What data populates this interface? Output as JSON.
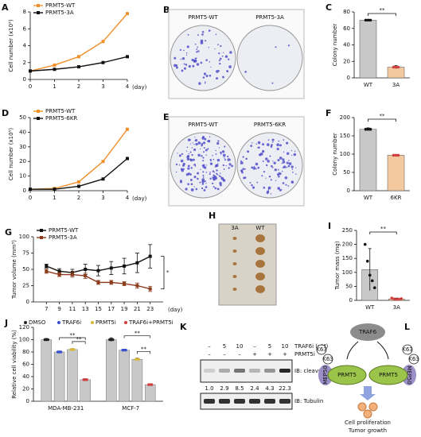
{
  "chart_data": [
    {
      "panel": "A",
      "type": "line",
      "ylabel": "Cell number (x10⁵)",
      "xlabel": "(day)",
      "x": [
        0,
        1,
        2,
        3,
        4
      ],
      "xlim": [
        0,
        4
      ],
      "xticks": [
        0,
        1,
        2,
        3,
        4
      ],
      "ylim": [
        0,
        8
      ],
      "yticks": [
        0,
        2,
        4,
        6,
        8
      ],
      "series": [
        {
          "name": "PRMT5-WT",
          "color": "#f0902a",
          "values": [
            1,
            1.7,
            2.7,
            4.5,
            7.8
          ]
        },
        {
          "name": "PRMT5-3A",
          "color": "#111111",
          "values": [
            1,
            1.2,
            1.5,
            2,
            2.7
          ]
        }
      ]
    },
    {
      "panel": "C",
      "type": "bar",
      "ylabel": "Colony number",
      "categories": [
        "WT",
        "3A"
      ],
      "values": [
        70,
        13
      ],
      "errors": [
        1,
        2
      ],
      "colors": [
        "#c8c8c8",
        "#f5c9a0"
      ],
      "ylim": [
        0,
        80
      ],
      "yticks": [
        0,
        20,
        40,
        60,
        80
      ],
      "annotations": [
        "**"
      ]
    },
    {
      "panel": "D",
      "type": "line",
      "ylabel": "Cell number (x10⁵)",
      "xlabel": "(day)",
      "x": [
        0,
        1,
        2,
        3,
        4
      ],
      "xlim": [
        0,
        4
      ],
      "xticks": [
        0,
        1,
        2,
        3,
        4
      ],
      "ylim": [
        0,
        50
      ],
      "yticks": [
        0,
        10,
        20,
        30,
        40,
        50
      ],
      "series": [
        {
          "name": "PRMT5-WT",
          "color": "#f0902a",
          "values": [
            1,
            1.5,
            6,
            20,
            42
          ]
        },
        {
          "name": "PRMT5-6KR",
          "color": "#111111",
          "values": [
            1,
            1,
            3,
            8,
            22
          ]
        }
      ]
    },
    {
      "panel": "F",
      "type": "bar",
      "ylabel": "Colony number",
      "categories": [
        "WT",
        "6KR"
      ],
      "values": [
        168,
        97
      ],
      "errors": [
        4,
        2
      ],
      "colors": [
        "#c8c8c8",
        "#f5c9a0"
      ],
      "ylim": [
        0,
        200
      ],
      "yticks": [
        0,
        50,
        100,
        150,
        200
      ],
      "annotations": [
        "**"
      ]
    },
    {
      "panel": "G",
      "type": "line",
      "ylabel": "Tumor volume (mm³)",
      "xlabel": "(day)",
      "x": [
        7,
        9,
        11,
        13,
        15,
        17,
        19,
        21,
        23
      ],
      "xlim": [
        5,
        25
      ],
      "xticks": [
        7,
        9,
        11,
        13,
        15,
        17,
        19,
        21,
        23
      ],
      "ylim": [
        0,
        100
      ],
      "yticks": [
        0,
        25,
        50,
        75,
        100
      ],
      "series": [
        {
          "name": "PRMT5-WT",
          "color": "#111111",
          "values": [
            55,
            47,
            45,
            50,
            48,
            52,
            55,
            60,
            70
          ],
          "errors": [
            3,
            4,
            5,
            8,
            8,
            10,
            12,
            15,
            18
          ]
        },
        {
          "name": "PRMT5-3A",
          "color": "#8b3a1a",
          "values": [
            47,
            42,
            42,
            40,
            30,
            30,
            28,
            25,
            20
          ],
          "errors": [
            3,
            3,
            4,
            4,
            3,
            3,
            3,
            4,
            4
          ]
        }
      ],
      "annotations": [
        "*"
      ]
    },
    {
      "panel": "I",
      "type": "bar",
      "ylabel": "Tumor mass (mg)",
      "categories": [
        "WT",
        "3A"
      ],
      "values": [
        110,
        5
      ],
      "errors": [
        75,
        3
      ],
      "colors": [
        "#c8c8c8",
        "#f5c9a0"
      ],
      "points": [
        [
          200,
          140,
          90,
          70,
          45
        ],
        [
          8,
          5,
          3,
          4,
          6
        ]
      ],
      "ylim": [
        0,
        250
      ],
      "yticks": [
        0,
        50,
        100,
        150,
        200,
        250
      ],
      "annotations": [
        "**"
      ]
    },
    {
      "panel": "J",
      "type": "bar",
      "ylabel": "Relative cell viability (%)",
      "categories": [
        "MDA-MB-231",
        "MCF-7"
      ],
      "series": [
        {
          "name": "DMSO",
          "color": "#222222",
          "values": [
            100,
            100
          ],
          "errors": [
            2,
            3
          ]
        },
        {
          "name": "TRAF6i",
          "color": "#3a4fd0",
          "values": [
            80,
            83
          ],
          "errors": [
            1.5,
            1.5
          ]
        },
        {
          "name": "PRMT5i",
          "color": "#d6b83a",
          "values": [
            84,
            68
          ],
          "errors": [
            1.5,
            2
          ]
        },
        {
          "name": "TRAF6i+PRMT5i",
          "color": "#d04040",
          "values": [
            35,
            27
          ],
          "errors": [
            1.5,
            1.5
          ]
        }
      ],
      "ylim": [
        0,
        120
      ],
      "yticks": [
        0,
        20,
        40,
        60,
        80,
        100,
        120
      ],
      "annotations": [
        "**",
        "**",
        "**",
        "**"
      ]
    }
  ],
  "colony_images": [
    {
      "panel": "B",
      "labels": [
        "PRMT5-WT",
        "PRMT5-3A"
      ]
    },
    {
      "panel": "E",
      "labels": [
        "PRMT5-WT",
        "PRMT5-6KR"
      ]
    }
  ],
  "tumor_image": {
    "panel": "H",
    "labels": [
      "3A",
      "WT"
    ]
  },
  "blot": {
    "panel": "K",
    "traf6i_label": "TRAF6i (μM)",
    "prmt5i_label": "PRMT5i",
    "traf6i": [
      "–",
      "5",
      "10",
      "–",
      "5",
      "10"
    ],
    "prmt5i": [
      "–",
      "–",
      "–",
      "+",
      "+",
      "+"
    ],
    "quant": [
      "1.0",
      "2.9",
      "8.5",
      "2.4",
      "4.3",
      "22.3"
    ],
    "ib1": "IB: cleaved-PARP",
    "ib2": "IB: Tubulin"
  },
  "diagram": {
    "panel": "L",
    "top": "TRAF6",
    "nodes": [
      "PRMT5",
      "PRMT5"
    ],
    "adaptors": [
      "MEP50",
      "MEP50"
    ],
    "marks": [
      "K63",
      "K63",
      "K63",
      "K63"
    ],
    "outcome": [
      "Cell proliferation",
      "Tumor growth"
    ]
  }
}
